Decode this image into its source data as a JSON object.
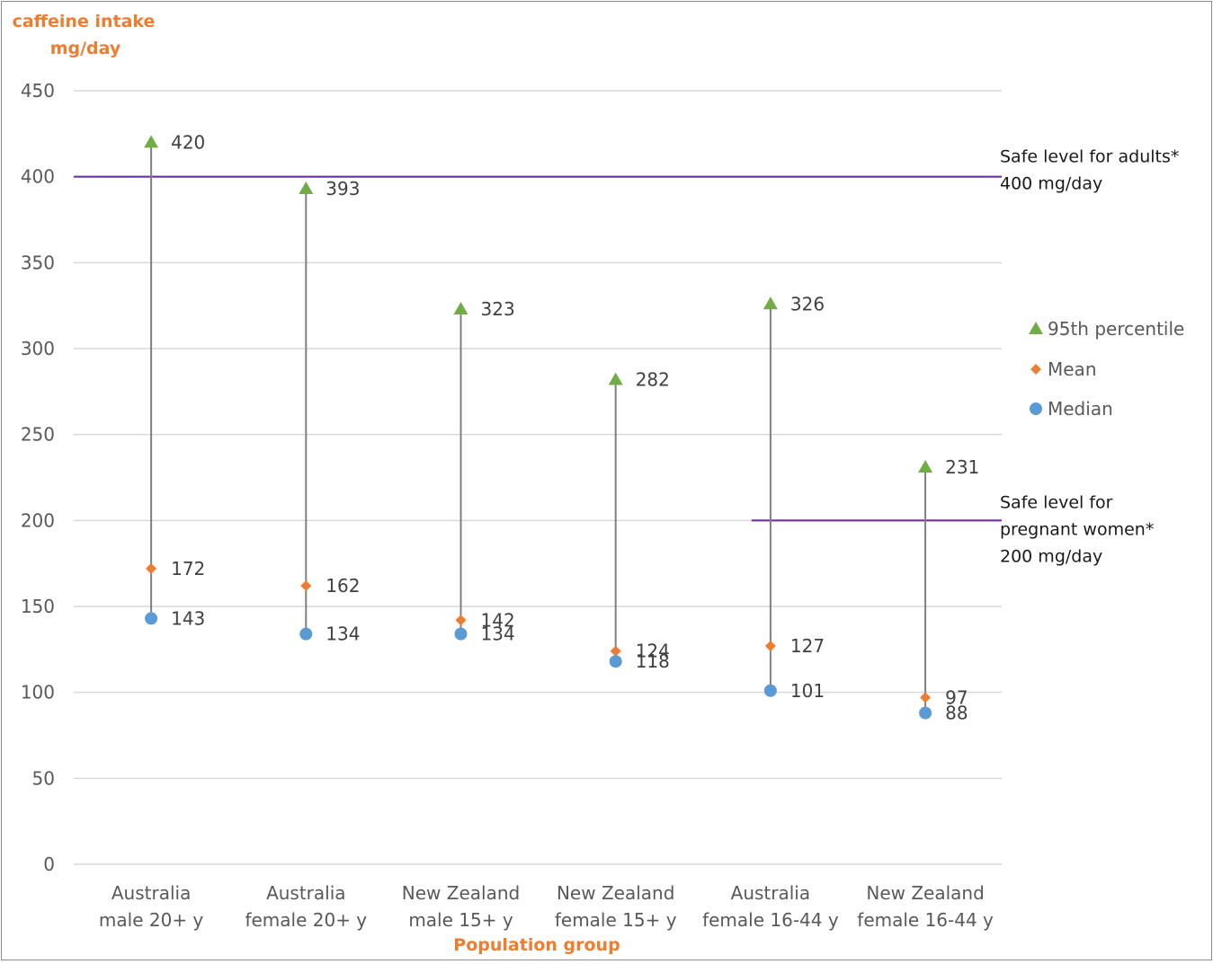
{
  "chart_data": {
    "type": "scatter",
    "ylabel_lines": [
      "caffeine intake",
      "mg/day"
    ],
    "xlabel": "Population group",
    "ylim": [
      0,
      450
    ],
    "y_ticks": [
      0,
      50,
      100,
      150,
      200,
      250,
      300,
      350,
      400,
      450
    ],
    "grid": true,
    "legend_position": "right",
    "categories": [
      [
        "Australia",
        "male 20+ y"
      ],
      [
        "Australia",
        "female 20+ y"
      ],
      [
        "New Zealand",
        "male 15+ y"
      ],
      [
        "New Zealand",
        "female 15+ y"
      ],
      [
        "Australia",
        "female 16-44 y"
      ],
      [
        "New Zealand",
        "female 16-44 y"
      ]
    ],
    "series": [
      {
        "name": "95th percentile",
        "marker": "triangle",
        "color": "#70ad47",
        "values": [
          420,
          393,
          323,
          282,
          326,
          231
        ]
      },
      {
        "name": "Mean",
        "marker": "diamond",
        "color": "#ed7d31",
        "values": [
          172,
          162,
          142,
          124,
          127,
          97
        ]
      },
      {
        "name": "Median",
        "marker": "circle",
        "color": "#5b9bd5",
        "values": [
          143,
          134,
          134,
          118,
          101,
          88
        ]
      }
    ],
    "reference_lines": [
      {
        "value": 400,
        "label_lines": [
          "Safe level for adults*",
          "400 mg/day"
        ],
        "span": "full",
        "color": "#7030a0"
      },
      {
        "value": 200,
        "label_lines": [
          "Safe level for",
          "pregnant women*",
          "200 mg/day"
        ],
        "span": "last-two",
        "color": "#7030a0"
      }
    ],
    "colors": {
      "axis_title": "#ed7d31",
      "range_line": "#808080",
      "grid": "#d9d9d9"
    }
  }
}
